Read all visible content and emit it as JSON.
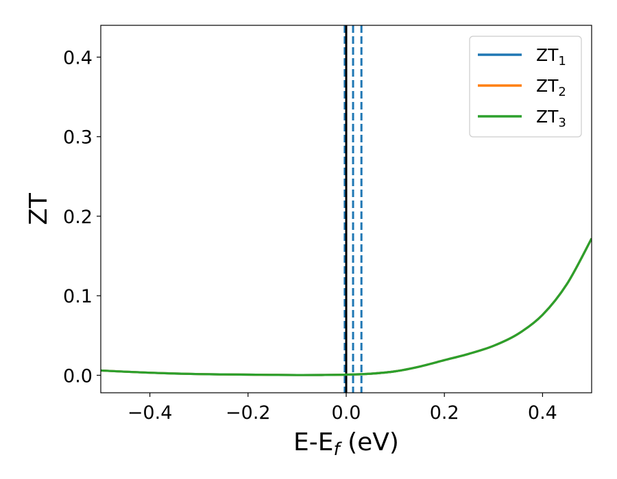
{
  "chart_data": {
    "type": "line",
    "xlabel": "E-E",
    "xlabel_sub": "f",
    "xlabel_unit": " (eV)",
    "ylabel": "ZT",
    "xlim": [
      -0.5,
      0.5
    ],
    "ylim": [
      -0.022,
      0.44
    ],
    "xticks": [
      -0.4,
      -0.2,
      0.0,
      0.2,
      0.4
    ],
    "xtick_labels": [
      "−0.4",
      "−0.2",
      "0.0",
      "0.2",
      "0.4"
    ],
    "yticks": [
      0.0,
      0.1,
      0.2,
      0.3,
      0.4
    ],
    "ytick_labels": [
      "0.0",
      "0.1",
      "0.2",
      "0.3",
      "0.4"
    ],
    "grid": false,
    "legend_position": "top-right",
    "x": [
      -0.5,
      -0.45,
      -0.4,
      -0.35,
      -0.3,
      -0.25,
      -0.2,
      -0.15,
      -0.1,
      -0.05,
      0.0,
      0.05,
      0.1,
      0.15,
      0.2,
      0.25,
      0.3,
      0.35,
      0.4,
      0.45,
      0.5
    ],
    "series": [
      {
        "name": "ZT",
        "sub": "1",
        "color": "#1f77b4",
        "values": [
          0.006,
          0.0045,
          0.0032,
          0.0022,
          0.0015,
          0.0011,
          0.0008,
          0.0005,
          0.0003,
          0.0004,
          0.0008,
          0.002,
          0.005,
          0.011,
          0.019,
          0.027,
          0.037,
          0.052,
          0.076,
          0.115,
          0.172
        ]
      },
      {
        "name": "ZT",
        "sub": "2",
        "color": "#ff7f0e",
        "values": [
          0.006,
          0.0045,
          0.0032,
          0.0022,
          0.0015,
          0.0011,
          0.0008,
          0.0005,
          0.0003,
          0.0004,
          0.0008,
          0.002,
          0.005,
          0.011,
          0.019,
          0.027,
          0.037,
          0.052,
          0.076,
          0.115,
          0.172
        ]
      },
      {
        "name": "ZT",
        "sub": "3",
        "color": "#2ca02c",
        "values": [
          0.006,
          0.0045,
          0.0032,
          0.0022,
          0.0015,
          0.0011,
          0.0008,
          0.0005,
          0.0003,
          0.0004,
          0.0008,
          0.002,
          0.005,
          0.011,
          0.019,
          0.027,
          0.037,
          0.052,
          0.076,
          0.115,
          0.172
        ]
      }
    ],
    "vlines": [
      {
        "x": -0.003,
        "color": "#1f77b4",
        "style": "dashed"
      },
      {
        "x": 0.0,
        "color": "#000000",
        "style": "solid"
      },
      {
        "x": 0.014,
        "color": "#1f77b4",
        "style": "dashed"
      },
      {
        "x": 0.031,
        "color": "#1f77b4",
        "style": "dashed"
      }
    ]
  }
}
